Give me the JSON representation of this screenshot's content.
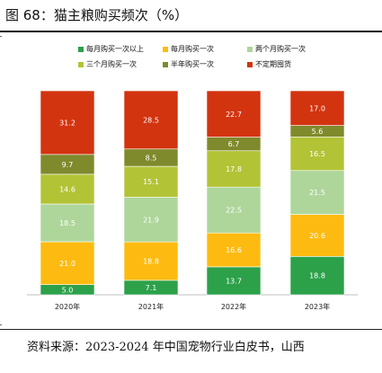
{
  "title": "图 68：猫主粮购买频次（%）",
  "source": "资料来源：2023-2024 年中国宠物行业白皮书，山西",
  "chart_data": {
    "type": "bar",
    "stacked": true,
    "categories": [
      "2020年",
      "2021年",
      "2022年",
      "2023年"
    ],
    "series": [
      {
        "name": "每月购买一次以上",
        "color": "#2ca14a",
        "values": [
          5.0,
          7.1,
          13.7,
          18.8
        ]
      },
      {
        "name": "每月购买一次",
        "color": "#fdbb11",
        "values": [
          21.0,
          18.8,
          16.6,
          20.6
        ]
      },
      {
        "name": "两个月购买一次",
        "color": "#aed69b",
        "values": [
          18.5,
          21.9,
          22.5,
          21.5
        ]
      },
      {
        "name": "三个月购买一次",
        "color": "#b3c336",
        "values": [
          14.6,
          15.1,
          17.8,
          16.5
        ]
      },
      {
        "name": "半年购买一次",
        "color": "#7f8a2c",
        "values": [
          9.7,
          8.5,
          6.7,
          5.6
        ]
      },
      {
        "name": "不定期囤货",
        "color": "#d23410",
        "values": [
          31.2,
          28.5,
          22.7,
          17.0
        ]
      }
    ],
    "value_labels": {
      "每月购买一次以上": [
        "5.0",
        "7.1",
        "13.7",
        "18.8"
      ],
      "每月购买一次": [
        "21.0",
        "18.8",
        "16.6",
        "20.6"
      ],
      "两个月购买一次": [
        "18.5",
        "21.9",
        "22.5",
        "21.5"
      ],
      "三个月购买一次": [
        "14.6",
        "15.1",
        "17.8",
        "16.5"
      ],
      "半年购买一次": [
        "9.7",
        "8.5",
        "6.7",
        "5.6"
      ],
      "不定期囤货": [
        "31.2",
        "28.5",
        "22.7",
        "17.0"
      ]
    },
    "ylim": [
      0,
      100
    ],
    "legend_position": "top",
    "grid": false
  }
}
